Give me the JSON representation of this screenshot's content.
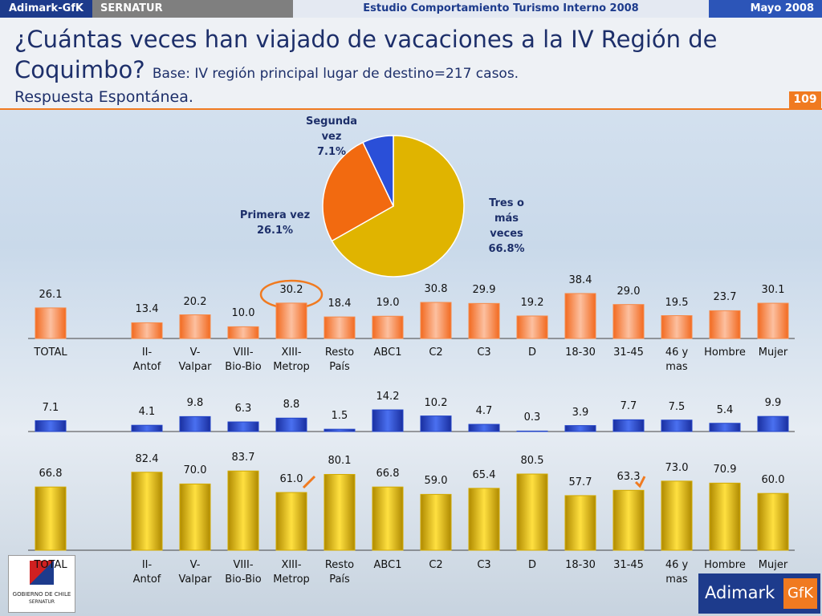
{
  "header": {
    "brand": "Adimark-GfK",
    "client": "SERNATUR",
    "study": "Estudio Comportamiento Turismo Interno 2008",
    "date": "Mayo 2008",
    "title": "¿Cuántas veces han viajado de vacaciones a la IV Región de Coquimbo?",
    "base": "Base: IV región principal lugar de destino=217 casos.",
    "subtitle": "Respuesta Espontánea.",
    "page": "109"
  },
  "footer": {
    "gov": "GOBIERNO DE CHILE",
    "gov_sub": "SERNATUR",
    "logo": "Adimark",
    "logo2": "GfK"
  },
  "chart_data": [
    {
      "type": "pie",
      "categories": [
        "Tres o más\nveces",
        "Primera vez",
        "Segunda\nvez"
      ],
      "values": [
        66.8,
        26.1,
        7.1
      ],
      "value_labels": [
        "66.8%",
        "26.1%",
        "7.1%"
      ],
      "colors": [
        "#e0b400",
        "#f26a10",
        "#2a4fd8"
      ]
    },
    {
      "type": "bar",
      "color": "#f58a4a",
      "categories": [
        "TOTAL",
        null,
        "II-\nAntof",
        "V-\nValpar",
        "VIII-\nBio-Bio",
        "XIII-\nMetrop",
        "Resto\nPaís",
        "ABC1",
        "C2",
        "C3",
        "D",
        "18-30",
        "31-45",
        "46 y\nmas",
        "Hombre",
        "Mujer"
      ],
      "values": [
        26.1,
        null,
        13.4,
        20.2,
        10.0,
        30.2,
        18.4,
        19.0,
        30.8,
        29.9,
        19.2,
        38.4,
        29.0,
        19.5,
        23.7,
        30.1
      ],
      "value_labels": [
        "26.1",
        null,
        "13.4",
        "20.2",
        "10.0",
        "30.2",
        "18.4",
        "19.0",
        "30.8",
        "29.9",
        "19.2",
        "38.4",
        "29.0",
        "19.5",
        "23.7",
        "30.1"
      ]
    },
    {
      "type": "bar",
      "color": "#2445c8",
      "values": [
        7.1,
        null,
        4.1,
        9.8,
        6.3,
        8.8,
        1.5,
        14.2,
        10.2,
        4.7,
        0.3,
        3.9,
        7.7,
        7.5,
        5.4,
        9.9
      ]
    },
    {
      "type": "bar",
      "color": "#d2aa00",
      "categories": [
        "TOTAL",
        null,
        "II-\nAntof",
        "V-\nValpar",
        "VIII-\nBio-Bio",
        "XIII-\nMetrop",
        "Resto\nPaís",
        "ABC1",
        "C2",
        "C3",
        "D",
        "18-30",
        "31-45",
        "46 y\nmas",
        "Hombre",
        "Mujer"
      ],
      "values": [
        66.8,
        null,
        82.4,
        70.0,
        83.7,
        61.0,
        80.1,
        66.8,
        59.0,
        65.4,
        80.5,
        57.7,
        63.3,
        73.0,
        70.9,
        60.0
      ],
      "value_labels": [
        "66.8",
        null,
        "82.4",
        "70.0",
        "83.7",
        "61.0",
        "80.1",
        "66.8",
        "59.0",
        "65.4",
        "80.5",
        "57.7",
        "63.3",
        "73.0",
        "70.9",
        "60.0"
      ]
    }
  ]
}
